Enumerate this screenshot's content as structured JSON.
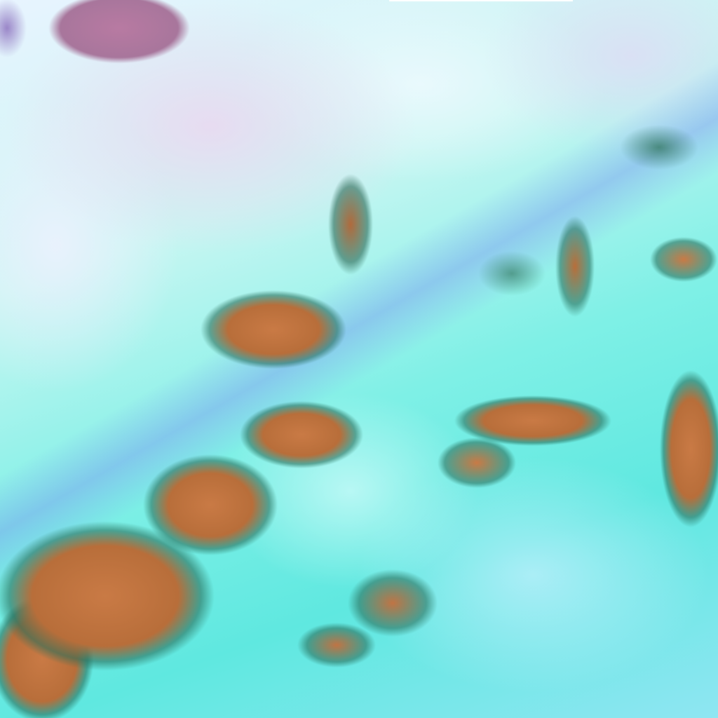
{
  "image": {
    "kind": "false-color satellite cloud imagery",
    "colors": {
      "clear_sky_cyan": "#5fe8e0",
      "high_cloud_white": "#e8f4ff",
      "convective_cloud_orange": "#c97a45",
      "cloud_edge_green": "#286e5a",
      "water_body_mauve": "#b87aa2",
      "streak_blue": "#7896f0"
    }
  }
}
